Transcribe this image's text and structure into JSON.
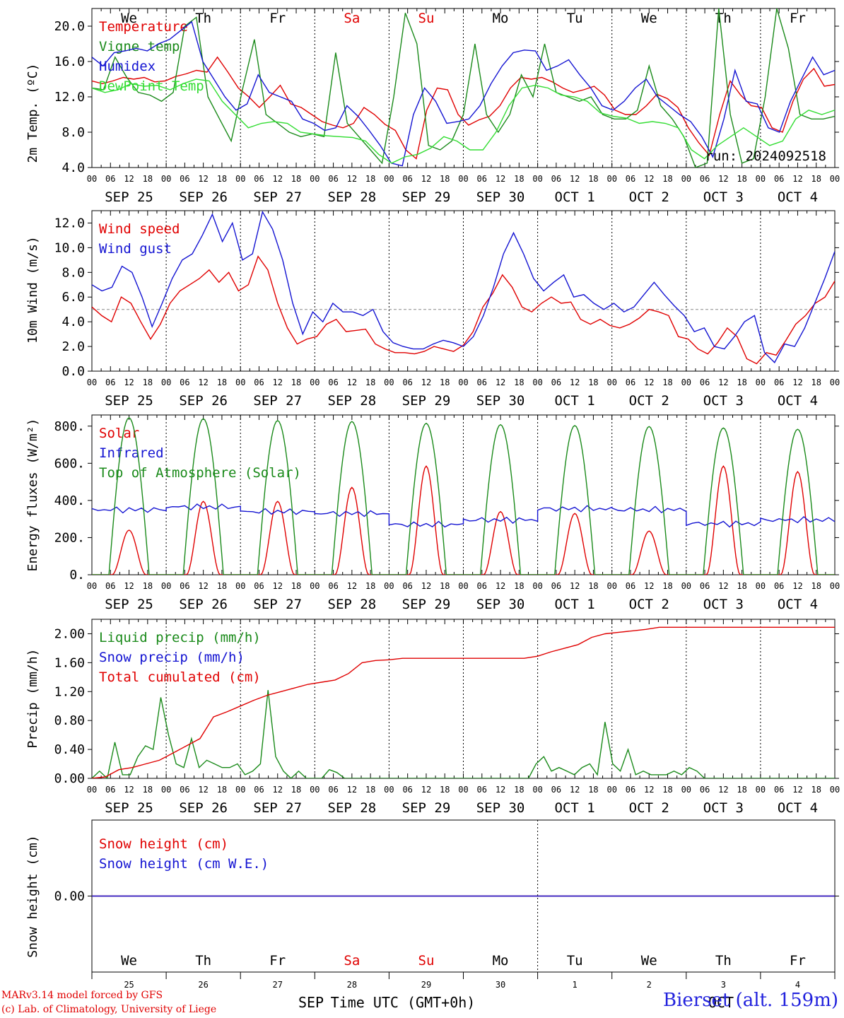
{
  "figure": {
    "days": [
      "SEP 25",
      "SEP 26",
      "SEP 27",
      "SEP 28",
      "SEP 29",
      "SEP 30",
      "OCT  1",
      "OCT  2",
      "OCT  3",
      "OCT  4"
    ],
    "weekdays": [
      {
        "label": "We",
        "color": "#000000"
      },
      {
        "label": "Th",
        "color": "#000000"
      },
      {
        "label": "Fr",
        "color": "#000000"
      },
      {
        "label": "Sa",
        "color": "#e00000"
      },
      {
        "label": "Su",
        "color": "#e00000"
      },
      {
        "label": "Mo",
        "color": "#000000"
      },
      {
        "label": "Tu",
        "color": "#000000"
      },
      {
        "label": "We",
        "color": "#000000"
      },
      {
        "label": "Th",
        "color": "#000000"
      },
      {
        "label": "Fr",
        "color": "#000000"
      }
    ],
    "day_numbers": [
      "25",
      "26",
      "27",
      "28",
      "29",
      "30",
      "1",
      "2",
      "3",
      "4"
    ],
    "hour_ticks": [
      "00",
      "06",
      "12",
      "18"
    ],
    "final_hour_tick": "00",
    "bottom_month_labels": [
      "SEP",
      "OCT"
    ],
    "xlabel": "Time UTC (GMT+0h)",
    "run_label": "run: 2024092518",
    "credit_line1": "MARv3.14 model forced by GFS",
    "credit_line2": "(c) Lab. of Climatology, University of Liege",
    "site_label": "Bierset (alt. 159m)",
    "colors": {
      "red": "#e00000",
      "green": "#1a8a1a",
      "blue": "#1414d2",
      "lightgreen": "#33dd33",
      "purple": "#7f3fbf"
    }
  },
  "chart_data": [
    {
      "type": "line",
      "ylabel": "2m Temp. (ºC)",
      "ylim": [
        4.0,
        22.0
      ],
      "yticks": [
        "4.0",
        "8.0",
        "12.0",
        "16.0",
        "20.0"
      ],
      "x_unit": "hours since 2024-09-25 00 UTC (3-hourly)",
      "x_step_hours": 3,
      "series": [
        {
          "name": "Temperature",
          "color": "#e00000",
          "values": [
            13.8,
            13.5,
            13.8,
            14.2,
            14.0,
            14.2,
            13.7,
            13.8,
            14.3,
            14.6,
            15.0,
            14.8,
            16.5,
            14.8,
            13.0,
            12.0,
            10.8,
            12.0,
            13.3,
            11.2,
            10.8,
            10.0,
            9.2,
            8.8,
            8.5,
            9.0,
            10.8,
            10.0,
            8.9,
            8.2,
            6.0,
            5.0,
            10.5,
            13.0,
            12.8,
            10.0,
            8.8,
            9.4,
            9.8,
            11.0,
            13.0,
            14.2,
            14.0,
            14.2,
            13.7,
            13.0,
            12.5,
            12.8,
            13.2,
            12.2,
            10.5,
            10.0,
            10.0,
            11.0,
            12.3,
            11.8,
            10.8,
            8.5,
            6.8,
            5.4,
            10.0,
            13.8,
            12.2,
            11.0,
            10.8,
            8.5,
            8.0,
            11.5,
            14.0,
            15.2,
            13.2,
            13.4
          ]
        },
        {
          "name": "Vigne temp",
          "color": "#1a8a1a",
          "values": [
            13.0,
            12.8,
            16.5,
            14.2,
            12.5,
            12.2,
            11.5,
            12.5,
            20.0,
            21.0,
            12.0,
            9.5,
            7.0,
            13.0,
            18.5,
            10.0,
            9.0,
            8.0,
            7.5,
            7.8,
            7.5,
            17.0,
            9.0,
            7.5,
            6.0,
            4.5,
            12.0,
            21.5,
            18.0,
            6.5,
            6.0,
            7.0,
            10.0,
            18.0,
            10.0,
            8.0,
            10.0,
            14.5,
            12.0,
            18.0,
            12.5,
            12.0,
            11.5,
            12.0,
            10.0,
            9.5,
            9.5,
            10.5,
            15.5,
            11.0,
            9.5,
            7.5,
            4.0,
            4.5,
            22.0,
            10.0,
            4.5,
            5.0,
            12.0,
            22.0,
            17.5,
            10.0,
            9.5,
            9.5,
            9.8
          ]
        },
        {
          "name": "Humidex",
          "color": "#1414d2",
          "values": [
            16.5,
            15.5,
            17.0,
            17.2,
            17.5,
            17.2,
            18.0,
            18.5,
            19.5,
            20.5,
            16.0,
            14.0,
            12.0,
            10.5,
            11.2,
            14.5,
            12.5,
            12.0,
            11.5,
            9.5,
            9.0,
            8.2,
            8.5,
            11.0,
            9.8,
            8.2,
            6.5,
            4.5,
            4.2,
            10.0,
            13.0,
            11.5,
            9.0,
            9.2,
            9.5,
            11.0,
            13.5,
            15.5,
            17.0,
            17.3,
            17.2,
            15.0,
            15.5,
            16.2,
            14.5,
            13.0,
            11.0,
            10.5,
            11.5,
            13.0,
            14.0,
            12.0,
            11.0,
            10.0,
            9.2,
            7.5,
            5.2,
            9.5,
            15.0,
            11.5,
            11.2,
            8.5,
            8.0,
            11.5,
            14.0,
            16.5,
            14.5,
            15.0
          ]
        },
        {
          "name": "DewPoint Temp",
          "color": "#33dd33",
          "values": [
            13.0,
            12.5,
            12.8,
            13.5,
            13.2,
            13.3,
            12.8,
            13.5,
            14.0,
            13.8,
            11.5,
            10.0,
            8.5,
            9.0,
            9.2,
            9.0,
            8.0,
            7.8,
            7.6,
            7.5,
            7.4,
            7.0,
            5.5,
            4.5,
            5.2,
            5.5,
            6.2,
            7.5,
            7.0,
            6.0,
            6.0,
            8.0,
            11.0,
            13.0,
            13.3,
            13.0,
            12.2,
            12.0,
            11.5,
            10.2,
            9.8,
            9.6,
            9.0,
            9.2,
            9.0,
            8.5,
            6.0,
            5.0,
            6.5,
            7.5,
            8.5,
            7.5,
            6.5,
            7.0,
            9.5,
            10.5,
            10.0,
            10.5
          ]
        }
      ]
    },
    {
      "type": "line",
      "ylabel": "10m Wind (m/s)",
      "ylim": [
        0.0,
        13.0
      ],
      "yticks": [
        "0.0",
        "2.0",
        "4.0",
        "6.0",
        "8.0",
        "10.0",
        "12.0"
      ],
      "reference_line": 5.0,
      "series": [
        {
          "name": "Wind speed",
          "color": "#e00000",
          "values": [
            5.2,
            4.5,
            4.0,
            6.0,
            5.5,
            4.0,
            2.6,
            3.8,
            5.5,
            6.5,
            7.0,
            7.5,
            8.2,
            7.2,
            8.0,
            6.5,
            7.0,
            9.3,
            8.2,
            5.5,
            3.5,
            2.2,
            2.6,
            2.8,
            3.8,
            4.2,
            3.2,
            3.3,
            3.4,
            2.2,
            1.8,
            1.5,
            1.5,
            1.4,
            1.6,
            2.0,
            1.8,
            1.6,
            2.1,
            3.2,
            5.2,
            6.3,
            7.8,
            6.8,
            5.2,
            4.8,
            5.5,
            6.0,
            5.5,
            5.6,
            4.2,
            3.8,
            4.2,
            3.7,
            3.5,
            3.8,
            4.3,
            5.0,
            4.8,
            4.5,
            2.8,
            2.6,
            1.8,
            1.4,
            2.3,
            3.5,
            2.8,
            1.0,
            0.6,
            1.5,
            1.3,
            2.5,
            3.8,
            4.5,
            5.5,
            6.0,
            7.3
          ]
        },
        {
          "name": "Wind gust",
          "color": "#1414d2",
          "values": [
            7.0,
            6.5,
            6.8,
            8.5,
            8.0,
            6.0,
            3.6,
            5.5,
            7.5,
            9.0,
            9.5,
            11.0,
            12.7,
            10.5,
            12.0,
            9.0,
            9.5,
            12.9,
            11.5,
            9.0,
            5.5,
            3.0,
            4.8,
            4.0,
            5.5,
            4.8,
            4.8,
            4.5,
            5.0,
            3.2,
            2.3,
            2.0,
            1.8,
            1.8,
            2.2,
            2.5,
            2.3,
            2.0,
            2.8,
            4.5,
            6.8,
            9.5,
            11.2,
            9.5,
            7.5,
            6.5,
            7.2,
            7.8,
            6.0,
            6.2,
            5.5,
            5.0,
            5.5,
            4.8,
            5.2,
            6.2,
            7.2,
            6.2,
            5.3,
            4.5,
            3.2,
            3.5,
            2.0,
            1.8,
            2.8,
            4.0,
            4.5,
            1.5,
            0.7,
            2.2,
            2.0,
            3.5,
            5.5,
            7.5,
            9.7
          ]
        }
      ]
    },
    {
      "type": "line",
      "ylabel": "Energy fluxes (W/m²)",
      "ylim": [
        0,
        860
      ],
      "yticks": [
        "0.",
        "200.",
        "400.",
        "600.",
        "800."
      ],
      "series": [
        {
          "name": "Solar",
          "color": "#e00000",
          "daily_peaks": [
            240,
            395,
            395,
            470,
            585,
            340,
            330,
            235,
            585,
            555
          ]
        },
        {
          "name": "Infrared",
          "color": "#1414d2",
          "daily_means": [
            350,
            365,
            340,
            330,
            270,
            295,
            355,
            350,
            275,
            295
          ]
        },
        {
          "name": "Top of Atmosphere (Solar)",
          "color": "#1a8a1a",
          "daily_peaks": [
            845,
            840,
            830,
            825,
            815,
            808,
            803,
            798,
            790,
            783
          ]
        }
      ]
    },
    {
      "type": "line",
      "ylabel": "Precip (mm/h)",
      "ylim": [
        0.0,
        2.2
      ],
      "yticks": [
        "0.00",
        "0.40",
        "0.80",
        "1.20",
        "1.60",
        "2.00"
      ],
      "series": [
        {
          "name": "Liquid precip (mm/h)",
          "color": "#1a8a1a",
          "values": [
            0,
            0.1,
            0,
            0.5,
            0.05,
            0.05,
            0.3,
            0.45,
            0.4,
            1.12,
            0.6,
            0.2,
            0.15,
            0.55,
            0.15,
            0.25,
            0.2,
            0.15,
            0.15,
            0.2,
            0.05,
            0.1,
            0.2,
            1.22,
            0.3,
            0.1,
            0,
            0.1,
            0,
            0,
            0,
            0.12,
            0.08,
            0,
            0,
            0,
            0,
            0,
            0,
            0,
            0,
            0,
            0,
            0,
            0,
            0,
            0,
            0,
            0,
            0,
            0,
            0,
            0,
            0,
            0,
            0,
            0,
            0,
            0.2,
            0.3,
            0.1,
            0.15,
            0.1,
            0.05,
            0.15,
            0.2,
            0.05,
            0.78,
            0.2,
            0.1,
            0.4,
            0.05,
            0.1,
            0.05,
            0.05,
            0.05,
            0.1,
            0.05,
            0.15,
            0.1,
            0,
            0,
            0,
            0,
            0,
            0,
            0,
            0,
            0,
            0,
            0,
            0,
            0,
            0,
            0,
            0,
            0,
            0
          ]
        },
        {
          "name": "Snow precip (mm/h)",
          "color": "#1414d2",
          "values": []
        },
        {
          "name": "Total cumulated (cm)",
          "color": "#e00000",
          "values": [
            0,
            0.02,
            0.12,
            0.15,
            0.2,
            0.25,
            0.35,
            0.45,
            0.55,
            0.85,
            0.92,
            1.0,
            1.08,
            1.15,
            1.2,
            1.25,
            1.3,
            1.33,
            1.36,
            1.45,
            1.6,
            1.63,
            1.64,
            1.66,
            1.66,
            1.66,
            1.66,
            1.66,
            1.66,
            1.66,
            1.66,
            1.66,
            1.66,
            1.69,
            1.75,
            1.8,
            1.85,
            1.95,
            2.0,
            2.02,
            2.04,
            2.06,
            2.09,
            2.09,
            2.09,
            2.09,
            2.09,
            2.09,
            2.09,
            2.09,
            2.09,
            2.09,
            2.09,
            2.09,
            2.09,
            2.09
          ]
        }
      ]
    },
    {
      "type": "line",
      "ylabel": "Snow height (cm)",
      "ylim": [
        -1.0,
        1.0
      ],
      "yticks": [
        "0.00"
      ],
      "series": [
        {
          "name": "Snow height (cm)",
          "color": "#e00000",
          "values": [
            0.0,
            0.0
          ]
        },
        {
          "name": "Snow height (cm W.E.)",
          "color": "#1414d2",
          "values": [
            0.0,
            0.0
          ]
        }
      ]
    }
  ]
}
